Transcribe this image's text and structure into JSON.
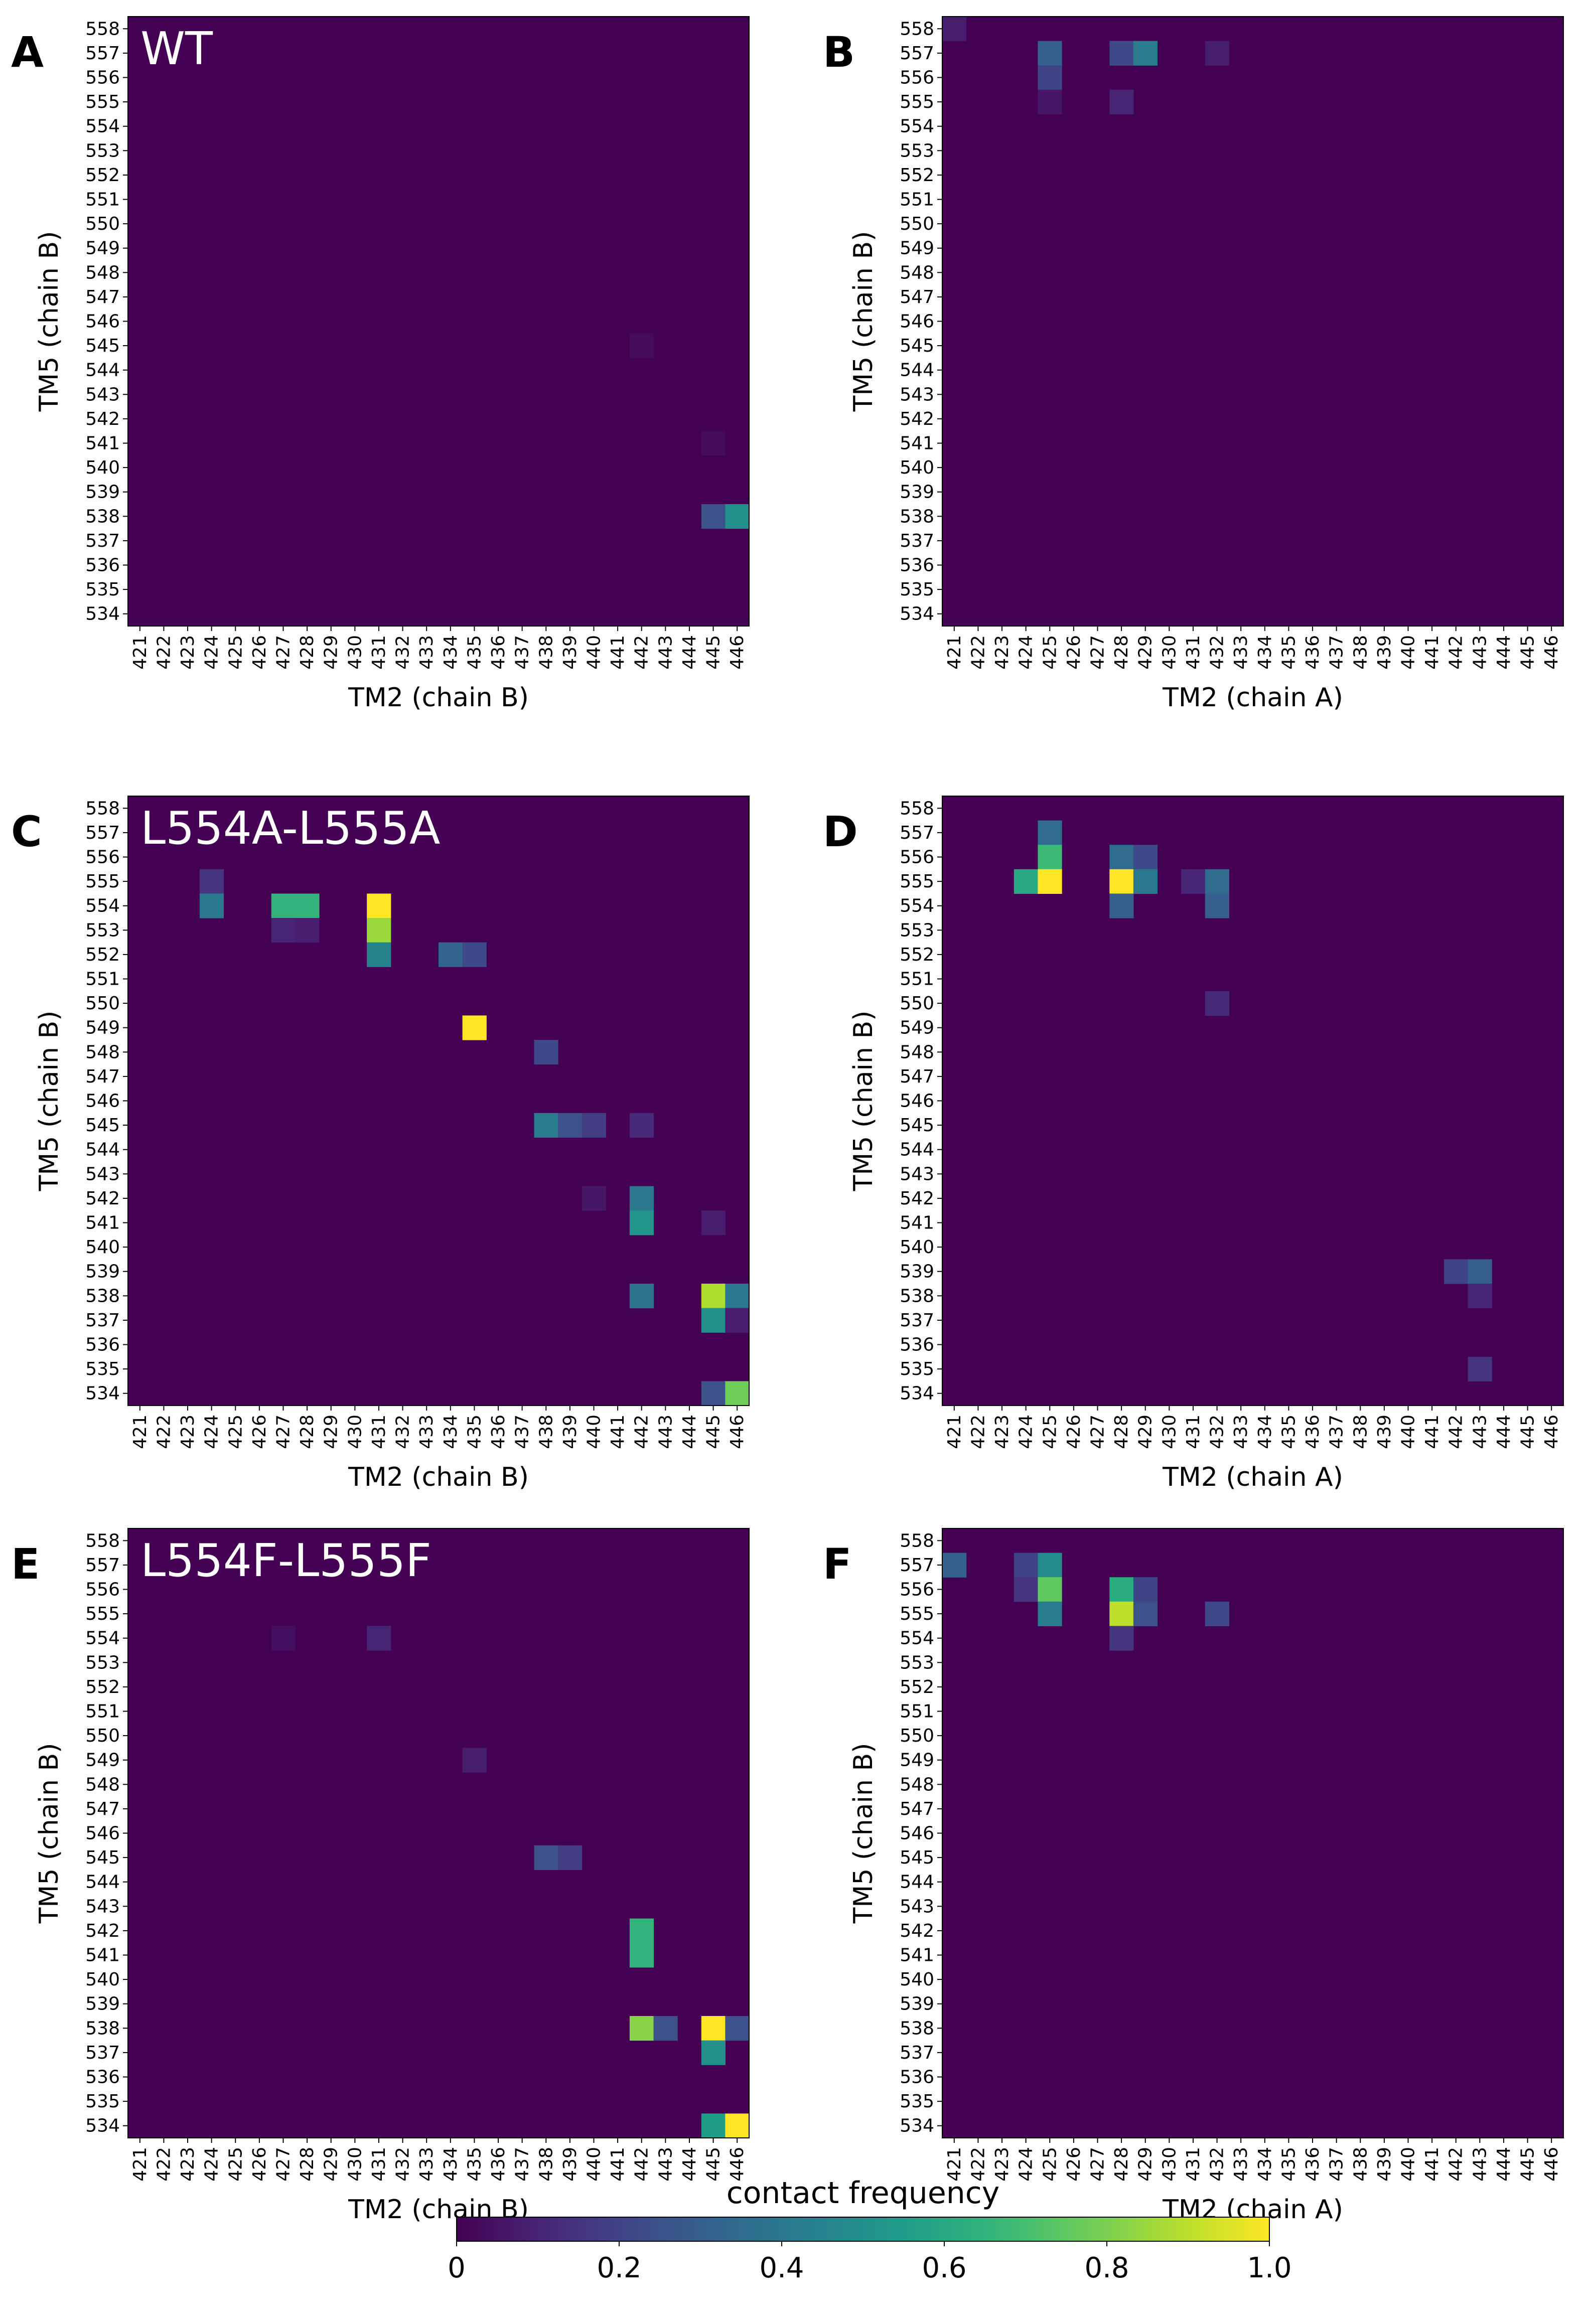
{
  "colorbar": {
    "label": "contact frequency",
    "ticks": [
      "0",
      "0.2",
      "0.4",
      "0.6",
      "0.8",
      "1.0"
    ],
    "tick_values": [
      0,
      0.2,
      0.4,
      0.6,
      0.8,
      1.0
    ],
    "colormap": "viridis"
  },
  "chart_data": [
    {
      "type": "heatmap",
      "panel": "A",
      "title": "WT",
      "xlabel": "TM2 (chain B)",
      "ylabel": "TM5 (chain B)",
      "x_ticks": [
        "421",
        "422",
        "423",
        "424",
        "425",
        "426",
        "427",
        "428",
        "429",
        "430",
        "431",
        "432",
        "433",
        "434",
        "435",
        "436",
        "437",
        "438",
        "439",
        "440",
        "441",
        "442",
        "443",
        "444",
        "445",
        "446"
      ],
      "y_ticks": [
        "558",
        "557",
        "556",
        "555",
        "554",
        "553",
        "552",
        "551",
        "550",
        "549",
        "548",
        "547",
        "546",
        "545",
        "544",
        "543",
        "542",
        "541",
        "540",
        "539",
        "538",
        "537",
        "536",
        "535",
        "534"
      ],
      "value_range": [
        0,
        1
      ],
      "cells": [
        {
          "x": "445",
          "y": "538",
          "value": 0.25
        },
        {
          "x": "446",
          "y": "538",
          "value": 0.5
        },
        {
          "x": "442",
          "y": "545",
          "value": 0.03
        },
        {
          "x": "445",
          "y": "541",
          "value": 0.03
        }
      ]
    },
    {
      "type": "heatmap",
      "panel": "B",
      "title": "",
      "xlabel": "TM2 (chain A)",
      "ylabel": "TM5 (chain B)",
      "x_ticks": [
        "421",
        "422",
        "423",
        "424",
        "425",
        "426",
        "427",
        "428",
        "429",
        "430",
        "431",
        "432",
        "433",
        "434",
        "435",
        "436",
        "437",
        "438",
        "439",
        "440",
        "441",
        "442",
        "443",
        "444",
        "445",
        "446"
      ],
      "y_ticks": [
        "558",
        "557",
        "556",
        "555",
        "554",
        "553",
        "552",
        "551",
        "550",
        "549",
        "548",
        "547",
        "546",
        "545",
        "544",
        "543",
        "542",
        "541",
        "540",
        "539",
        "538",
        "537",
        "536",
        "535",
        "534"
      ],
      "value_range": [
        0,
        1
      ],
      "cells": [
        {
          "x": "421",
          "y": "558",
          "value": 0.08
        },
        {
          "x": "425",
          "y": "557",
          "value": 0.3
        },
        {
          "x": "425",
          "y": "556",
          "value": 0.2
        },
        {
          "x": "425",
          "y": "555",
          "value": 0.06
        },
        {
          "x": "428",
          "y": "557",
          "value": 0.22
        },
        {
          "x": "429",
          "y": "557",
          "value": 0.42
        },
        {
          "x": "428",
          "y": "555",
          "value": 0.1
        },
        {
          "x": "432",
          "y": "557",
          "value": 0.08
        }
      ]
    },
    {
      "type": "heatmap",
      "panel": "C",
      "title": "L554A-L555A",
      "xlabel": "TM2 (chain B)",
      "ylabel": "TM5 (chain B)",
      "x_ticks": [
        "421",
        "422",
        "423",
        "424",
        "425",
        "426",
        "427",
        "428",
        "429",
        "430",
        "431",
        "432",
        "433",
        "434",
        "435",
        "436",
        "437",
        "438",
        "439",
        "440",
        "441",
        "442",
        "443",
        "444",
        "445",
        "446"
      ],
      "y_ticks": [
        "558",
        "557",
        "556",
        "555",
        "554",
        "553",
        "552",
        "551",
        "550",
        "549",
        "548",
        "547",
        "546",
        "545",
        "544",
        "543",
        "542",
        "541",
        "540",
        "539",
        "538",
        "537",
        "536",
        "535",
        "534"
      ],
      "value_range": [
        0,
        1
      ],
      "cells": [
        {
          "x": "424",
          "y": "555",
          "value": 0.15
        },
        {
          "x": "424",
          "y": "554",
          "value": 0.4
        },
        {
          "x": "427",
          "y": "554",
          "value": 0.65
        },
        {
          "x": "428",
          "y": "554",
          "value": 0.65
        },
        {
          "x": "427",
          "y": "553",
          "value": 0.1
        },
        {
          "x": "428",
          "y": "553",
          "value": 0.08
        },
        {
          "x": "431",
          "y": "554",
          "value": 1.0
        },
        {
          "x": "431",
          "y": "553",
          "value": 0.85
        },
        {
          "x": "431",
          "y": "552",
          "value": 0.45
        },
        {
          "x": "434",
          "y": "552",
          "value": 0.32
        },
        {
          "x": "435",
          "y": "552",
          "value": 0.22
        },
        {
          "x": "435",
          "y": "549",
          "value": 1.0
        },
        {
          "x": "438",
          "y": "548",
          "value": 0.22
        },
        {
          "x": "438",
          "y": "545",
          "value": 0.42
        },
        {
          "x": "439",
          "y": "545",
          "value": 0.25
        },
        {
          "x": "440",
          "y": "545",
          "value": 0.18
        },
        {
          "x": "442",
          "y": "545",
          "value": 0.12
        },
        {
          "x": "440",
          "y": "542",
          "value": 0.06
        },
        {
          "x": "442",
          "y": "542",
          "value": 0.4
        },
        {
          "x": "442",
          "y": "541",
          "value": 0.52
        },
        {
          "x": "445",
          "y": "541",
          "value": 0.08
        },
        {
          "x": "442",
          "y": "538",
          "value": 0.38
        },
        {
          "x": "445",
          "y": "538",
          "value": 0.88
        },
        {
          "x": "446",
          "y": "538",
          "value": 0.4
        },
        {
          "x": "445",
          "y": "537",
          "value": 0.5
        },
        {
          "x": "446",
          "y": "537",
          "value": 0.08
        },
        {
          "x": "445",
          "y": "534",
          "value": 0.25
        },
        {
          "x": "446",
          "y": "534",
          "value": 0.78
        }
      ]
    },
    {
      "type": "heatmap",
      "panel": "D",
      "title": "",
      "xlabel": "TM2 (chain A)",
      "ylabel": "TM5 (chain B)",
      "x_ticks": [
        "421",
        "422",
        "423",
        "424",
        "425",
        "426",
        "427",
        "428",
        "429",
        "430",
        "431",
        "432",
        "433",
        "434",
        "435",
        "436",
        "437",
        "438",
        "439",
        "440",
        "441",
        "442",
        "443",
        "444",
        "445",
        "446"
      ],
      "y_ticks": [
        "558",
        "557",
        "556",
        "555",
        "554",
        "553",
        "552",
        "551",
        "550",
        "549",
        "548",
        "547",
        "546",
        "545",
        "544",
        "543",
        "542",
        "541",
        "540",
        "539",
        "538",
        "537",
        "536",
        "535",
        "534"
      ],
      "value_range": [
        0,
        1
      ],
      "cells": [
        {
          "x": "425",
          "y": "557",
          "value": 0.35
        },
        {
          "x": "425",
          "y": "556",
          "value": 0.68
        },
        {
          "x": "424",
          "y": "555",
          "value": 0.6
        },
        {
          "x": "425",
          "y": "555",
          "value": 1.0
        },
        {
          "x": "428",
          "y": "556",
          "value": 0.35
        },
        {
          "x": "429",
          "y": "556",
          "value": 0.22
        },
        {
          "x": "428",
          "y": "555",
          "value": 1.0
        },
        {
          "x": "429",
          "y": "555",
          "value": 0.4
        },
        {
          "x": "428",
          "y": "554",
          "value": 0.3
        },
        {
          "x": "431",
          "y": "555",
          "value": 0.1
        },
        {
          "x": "432",
          "y": "555",
          "value": 0.35
        },
        {
          "x": "432",
          "y": "554",
          "value": 0.3
        },
        {
          "x": "432",
          "y": "550",
          "value": 0.12
        },
        {
          "x": "442",
          "y": "539",
          "value": 0.2
        },
        {
          "x": "443",
          "y": "539",
          "value": 0.3
        },
        {
          "x": "443",
          "y": "538",
          "value": 0.1
        },
        {
          "x": "443",
          "y": "535",
          "value": 0.15
        }
      ]
    },
    {
      "type": "heatmap",
      "panel": "E",
      "title": "L554F-L555F",
      "xlabel": "TM2 (chain B)",
      "ylabel": "TM5 (chain B)",
      "x_ticks": [
        "421",
        "422",
        "423",
        "424",
        "425",
        "426",
        "427",
        "428",
        "429",
        "430",
        "431",
        "432",
        "433",
        "434",
        "435",
        "436",
        "437",
        "438",
        "439",
        "440",
        "441",
        "442",
        "443",
        "444",
        "445",
        "446"
      ],
      "y_ticks": [
        "558",
        "557",
        "556",
        "555",
        "554",
        "553",
        "552",
        "551",
        "550",
        "549",
        "548",
        "547",
        "546",
        "545",
        "544",
        "543",
        "542",
        "541",
        "540",
        "539",
        "538",
        "537",
        "536",
        "535",
        "534"
      ],
      "value_range": [
        0,
        1
      ],
      "cells": [
        {
          "x": "427",
          "y": "554",
          "value": 0.04
        },
        {
          "x": "431",
          "y": "554",
          "value": 0.1
        },
        {
          "x": "435",
          "y": "549",
          "value": 0.08
        },
        {
          "x": "438",
          "y": "545",
          "value": 0.25
        },
        {
          "x": "439",
          "y": "545",
          "value": 0.18
        },
        {
          "x": "442",
          "y": "542",
          "value": 0.65
        },
        {
          "x": "442",
          "y": "541",
          "value": 0.65
        },
        {
          "x": "442",
          "y": "538",
          "value": 0.82
        },
        {
          "x": "443",
          "y": "538",
          "value": 0.25
        },
        {
          "x": "445",
          "y": "538",
          "value": 1.0
        },
        {
          "x": "446",
          "y": "538",
          "value": 0.25
        },
        {
          "x": "445",
          "y": "537",
          "value": 0.5
        },
        {
          "x": "445",
          "y": "534",
          "value": 0.55
        },
        {
          "x": "446",
          "y": "534",
          "value": 1.0
        }
      ]
    },
    {
      "type": "heatmap",
      "panel": "F",
      "title": "",
      "xlabel": "TM2 (chain A)",
      "ylabel": "TM5 (chain B)",
      "x_ticks": [
        "421",
        "422",
        "423",
        "424",
        "425",
        "426",
        "427",
        "428",
        "429",
        "430",
        "431",
        "432",
        "433",
        "434",
        "435",
        "436",
        "437",
        "438",
        "439",
        "440",
        "441",
        "442",
        "443",
        "444",
        "445",
        "446"
      ],
      "y_ticks": [
        "558",
        "557",
        "556",
        "555",
        "554",
        "553",
        "552",
        "551",
        "550",
        "549",
        "548",
        "547",
        "546",
        "545",
        "544",
        "543",
        "542",
        "541",
        "540",
        "539",
        "538",
        "537",
        "536",
        "535",
        "534"
      ],
      "value_range": [
        0,
        1
      ],
      "cells": [
        {
          "x": "421",
          "y": "557",
          "value": 0.3
        },
        {
          "x": "424",
          "y": "557",
          "value": 0.2
        },
        {
          "x": "425",
          "y": "557",
          "value": 0.48
        },
        {
          "x": "424",
          "y": "556",
          "value": 0.15
        },
        {
          "x": "425",
          "y": "556",
          "value": 0.75
        },
        {
          "x": "425",
          "y": "555",
          "value": 0.42
        },
        {
          "x": "428",
          "y": "556",
          "value": 0.62
        },
        {
          "x": "429",
          "y": "556",
          "value": 0.2
        },
        {
          "x": "428",
          "y": "555",
          "value": 0.9
        },
        {
          "x": "429",
          "y": "555",
          "value": 0.25
        },
        {
          "x": "428",
          "y": "554",
          "value": 0.15
        },
        {
          "x": "432",
          "y": "555",
          "value": 0.22
        }
      ]
    }
  ]
}
